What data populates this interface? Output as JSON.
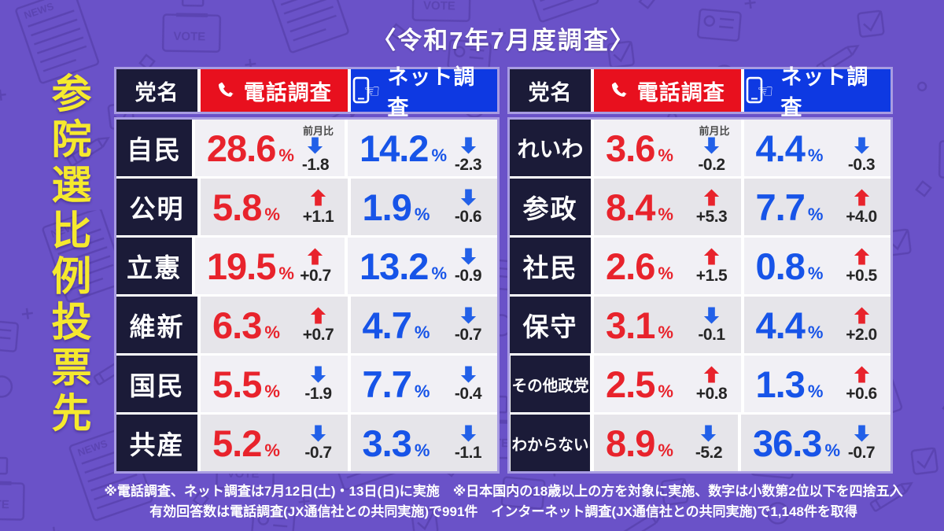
{
  "page_title": "〈令和7年7月度調査〉",
  "side_title": "参院選比例投票先",
  "table_header": {
    "party": "党名",
    "phone": "電話調査",
    "net": "ネット調査"
  },
  "mom_label": "前月比",
  "tables": [
    {
      "rows": [
        {
          "party": "自民",
          "phone": {
            "value": "28.6",
            "change": "-1.8"
          },
          "net": {
            "value": "14.2",
            "change": "-2.3"
          }
        },
        {
          "party": "公明",
          "phone": {
            "value": "5.8",
            "change": "+1.1"
          },
          "net": {
            "value": "1.9",
            "change": "-0.6"
          }
        },
        {
          "party": "立憲",
          "phone": {
            "value": "19.5",
            "change": "+0.7"
          },
          "net": {
            "value": "13.2",
            "change": "-0.9"
          }
        },
        {
          "party": "維新",
          "phone": {
            "value": "6.3",
            "change": "+0.7"
          },
          "net": {
            "value": "4.7",
            "change": "-0.7"
          }
        },
        {
          "party": "国民",
          "phone": {
            "value": "5.5",
            "change": "-1.9"
          },
          "net": {
            "value": "7.7",
            "change": "-0.4"
          }
        },
        {
          "party": "共産",
          "phone": {
            "value": "5.2",
            "change": "-0.7"
          },
          "net": {
            "value": "3.3",
            "change": "-1.1"
          }
        }
      ]
    },
    {
      "rows": [
        {
          "party": "れいわ",
          "phone": {
            "value": "3.6",
            "change": "-0.2"
          },
          "net": {
            "value": "4.4",
            "change": "-0.3"
          }
        },
        {
          "party": "参政",
          "phone": {
            "value": "8.4",
            "change": "+5.3"
          },
          "net": {
            "value": "7.7",
            "change": "+4.0"
          }
        },
        {
          "party": "社民",
          "phone": {
            "value": "2.6",
            "change": "+1.5"
          },
          "net": {
            "value": "0.8",
            "change": "+0.5"
          }
        },
        {
          "party": "保守",
          "phone": {
            "value": "3.1",
            "change": "-0.1"
          },
          "net": {
            "value": "4.4",
            "change": "+2.0"
          }
        },
        {
          "party": "その他政党",
          "phone": {
            "value": "2.5",
            "change": "+0.8"
          },
          "net": {
            "value": "1.3",
            "change": "+0.6"
          }
        },
        {
          "party": "わからない",
          "phone": {
            "value": "8.9",
            "change": "-5.2"
          },
          "net": {
            "value": "36.3",
            "change": "-0.7"
          }
        }
      ]
    }
  ],
  "footnotes": {
    "line1": "※電話調査、ネット調査は7月12日(土)・13日(日)に実施　※日本国内の18歳以上の方を対象に実施、数字は小数第2位以下を四捨五入",
    "line2": "有効回答数は電話調査(JX通信社との共同実施)で991件　インターネット調査(JX通信社との共同実施)で1,148件を取得"
  },
  "colors": {
    "background_purple": "#6a52c8",
    "doodle_purple": "#5b44b2",
    "table_border_lavender": "#a89ce2",
    "party_cell_navy": "#1b1b38",
    "phone_header_red": "#e8101e",
    "net_header_blue": "#0e39e2",
    "phone_value_red": "#e8232c",
    "net_value_blue": "#1754e8",
    "up_arrow_red": "#e8232c",
    "down_arrow_blue": "#2260e8",
    "row_bg": "#f1f0f5",
    "row_alt_bg": "#e6e5ea",
    "side_title_yellow": "#f5e92e"
  },
  "chart_data": {
    "type": "table",
    "title": "参院選比例投票先 〈令和7年7月度調査〉",
    "columns": [
      "党名",
      "電話調査 %",
      "電話調査 前月比",
      "ネット調査 %",
      "ネット調査 前月比"
    ],
    "rows": [
      [
        "自民",
        28.6,
        -1.8,
        14.2,
        -2.3
      ],
      [
        "公明",
        5.8,
        1.1,
        1.9,
        -0.6
      ],
      [
        "立憲",
        19.5,
        0.7,
        13.2,
        -0.9
      ],
      [
        "維新",
        6.3,
        0.7,
        4.7,
        -0.7
      ],
      [
        "国民",
        5.5,
        -1.9,
        7.7,
        -0.4
      ],
      [
        "共産",
        5.2,
        -0.7,
        3.3,
        -1.1
      ],
      [
        "れいわ",
        3.6,
        -0.2,
        4.4,
        -0.3
      ],
      [
        "参政",
        8.4,
        5.3,
        7.7,
        4.0
      ],
      [
        "社民",
        2.6,
        1.5,
        0.8,
        0.5
      ],
      [
        "保守",
        3.1,
        -0.1,
        4.4,
        2.0
      ],
      [
        "その他政党",
        2.5,
        0.8,
        1.3,
        0.6
      ],
      [
        "わからない",
        8.9,
        -5.2,
        36.3,
        -0.7
      ]
    ],
    "notes": "up arrows (increase) are red, down arrows (decrease) are blue; 前月比 = change vs previous month"
  }
}
